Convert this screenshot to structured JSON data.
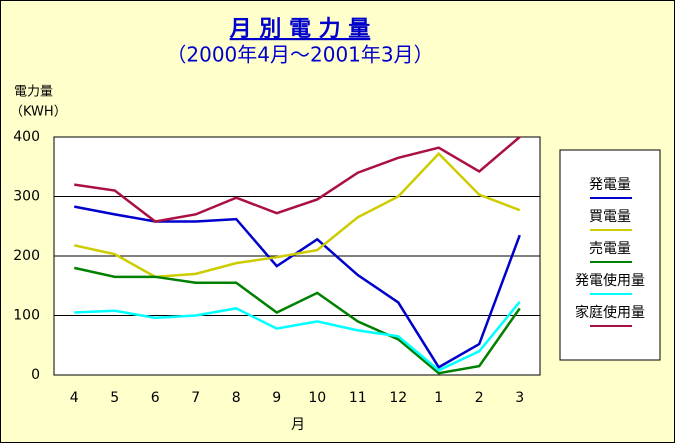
{
  "chart_data": {
    "type": "line",
    "title": "月 別 電 力 量",
    "subtitle": "（2000年4月～2001年3月）",
    "ylabel": "電力量",
    "yunit": "（KWH）",
    "xlabel": "月",
    "categories": [
      "4",
      "5",
      "6",
      "7",
      "8",
      "9",
      "10",
      "11",
      "12",
      "1",
      "2",
      "3"
    ],
    "ylim": [
      0,
      400
    ],
    "yticks": [
      0,
      100,
      200,
      300,
      400
    ],
    "grid": true,
    "series": [
      {
        "name": "発電量",
        "color": "#0000cc",
        "values": [
          283,
          270,
          258,
          258,
          262,
          183,
          228,
          168,
          122,
          13,
          52,
          235
        ]
      },
      {
        "name": "買電量",
        "color": "#cccc00",
        "values": [
          218,
          203,
          165,
          170,
          188,
          198,
          210,
          265,
          300,
          372,
          303,
          277
        ]
      },
      {
        "name": "売電量",
        "color": "#008000",
        "values": [
          180,
          165,
          165,
          155,
          155,
          105,
          138,
          90,
          60,
          3,
          15,
          112
        ]
      },
      {
        "name": "発電使用量",
        "color": "#00ffff",
        "values": [
          105,
          108,
          96,
          100,
          112,
          78,
          90,
          75,
          65,
          8,
          40,
          123
        ]
      },
      {
        "name": "家庭使用量",
        "color": "#aa1040",
        "values": [
          320,
          310,
          258,
          270,
          298,
          272,
          295,
          340,
          365,
          382,
          342,
          400
        ]
      }
    ]
  }
}
